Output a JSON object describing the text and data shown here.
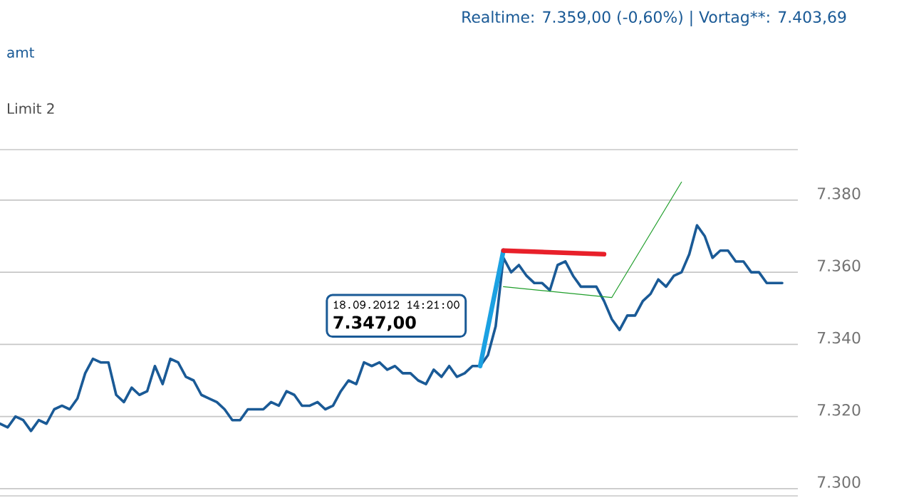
{
  "chart_data": {
    "type": "line",
    "title": "Realtime: 7.359,00 (-0,60%) | Vortag**: 7.403,69",
    "annotations": [
      "amt",
      "Limit 2",
      "18.09.2012 14:21:00",
      "7.347,00"
    ],
    "categories": [
      null,
      null,
      null,
      null,
      null,
      null,
      null,
      null,
      null,
      null,
      null,
      null,
      null,
      null,
      null,
      null,
      null,
      null,
      null,
      null,
      null,
      null,
      null,
      null,
      null,
      null,
      null,
      null,
      null,
      null,
      null,
      null,
      null,
      null,
      null,
      null,
      null,
      null,
      null,
      null,
      null,
      null,
      null,
      null,
      null,
      null,
      null,
      null,
      null,
      null,
      null,
      null,
      null,
      null,
      null,
      null,
      null,
      null,
      null,
      null,
      null,
      null,
      null,
      null,
      null,
      null,
      null,
      null,
      null,
      null,
      null,
      null,
      null,
      null,
      null,
      null,
      null,
      null,
      null,
      null,
      null,
      null,
      null,
      null,
      null,
      null,
      null,
      null,
      null,
      null,
      null,
      null,
      null,
      null,
      null,
      null,
      null,
      null,
      null,
      null,
      null,
      null
    ],
    "series": [
      {
        "color": "#1a5a96",
        "values": [
          7318,
          7317,
          7320,
          7319,
          7316,
          7319,
          7318,
          7322,
          7323,
          7322,
          7325,
          7332,
          7336,
          7335,
          7335,
          7326,
          7324,
          7328,
          7326,
          7327,
          7334,
          7329,
          7336,
          7335,
          7331,
          7330,
          7326,
          7325,
          7324,
          7322,
          7319,
          7319,
          7322,
          7322,
          7322,
          7324,
          7323,
          7327,
          7326,
          7323,
          7323,
          7324,
          7322,
          7323,
          7327,
          7330,
          7329,
          7335,
          7334,
          7335,
          7333,
          7334,
          7332,
          7332,
          7330,
          7329,
          7333,
          7331,
          7334,
          7331,
          7332,
          7334,
          7334,
          7337,
          7345,
          7364,
          7360,
          7362,
          7359,
          7357,
          7357,
          7355,
          7362,
          7363,
          7359,
          7356,
          7356,
          7356,
          7352,
          7347,
          7344,
          7348,
          7348,
          7352,
          7354,
          7358,
          7356,
          7359,
          7360,
          7365,
          7373,
          7370,
          7364,
          7366,
          7366,
          7363,
          7363,
          7360,
          7360,
          7357,
          7357,
          7357
        ]
      },
      {
        "color": "#1ba1e2",
        "values": [
          null,
          null,
          null,
          null,
          null,
          null,
          null,
          null,
          null,
          null,
          null,
          null,
          null,
          null,
          null,
          null,
          null,
          null,
          null,
          null,
          null,
          null,
          null,
          null,
          null,
          null,
          null,
          null,
          null,
          null,
          null,
          null,
          null,
          null,
          null,
          null,
          null,
          null,
          null,
          null,
          null,
          null,
          null,
          null,
          null,
          null,
          null,
          null,
          null,
          null,
          null,
          null,
          null,
          null,
          null,
          null,
          null,
          null,
          null,
          null,
          null,
          null,
          7334,
          null,
          null,
          7366,
          null,
          null,
          null,
          null,
          null,
          null,
          null,
          null,
          null,
          null,
          null,
          null,
          null,
          null,
          null,
          null,
          null,
          null,
          null,
          null,
          null,
          null,
          null,
          null,
          null,
          null,
          null,
          null,
          null,
          null,
          null,
          null,
          null,
          null,
          null,
          null
        ]
      },
      {
        "color": "#e8202a",
        "values": [
          null,
          null,
          null,
          null,
          null,
          null,
          null,
          null,
          null,
          null,
          null,
          null,
          null,
          null,
          null,
          null,
          null,
          null,
          null,
          null,
          null,
          null,
          null,
          null,
          null,
          null,
          null,
          null,
          null,
          null,
          null,
          null,
          null,
          null,
          null,
          null,
          null,
          null,
          null,
          null,
          null,
          null,
          null,
          null,
          null,
          null,
          null,
          null,
          null,
          null,
          null,
          null,
          null,
          null,
          null,
          null,
          null,
          null,
          null,
          null,
          null,
          null,
          null,
          null,
          null,
          7366,
          null,
          null,
          null,
          null,
          null,
          null,
          null,
          null,
          null,
          null,
          null,
          null,
          7365,
          null,
          null,
          null,
          null,
          null,
          null,
          null,
          null,
          null,
          null,
          null,
          null,
          null,
          null,
          null,
          null,
          null,
          null,
          null,
          null,
          null,
          null,
          null
        ]
      },
      {
        "color": "#1f9e2a",
        "values": [
          null,
          null,
          null,
          null,
          null,
          null,
          null,
          null,
          null,
          null,
          null,
          null,
          null,
          null,
          null,
          null,
          null,
          null,
          null,
          null,
          null,
          null,
          null,
          null,
          null,
          null,
          null,
          null,
          null,
          null,
          null,
          null,
          null,
          null,
          null,
          null,
          null,
          null,
          null,
          null,
          null,
          null,
          null,
          null,
          null,
          null,
          null,
          null,
          null,
          null,
          null,
          null,
          null,
          null,
          null,
          null,
          null,
          null,
          null,
          null,
          null,
          null,
          null,
          null,
          null,
          7356,
          null,
          null,
          null,
          null,
          null,
          null,
          null,
          null,
          null,
          null,
          null,
          null,
          null,
          7353,
          null,
          null,
          null,
          null,
          null,
          null,
          null,
          null,
          7385,
          null,
          null,
          null,
          null,
          null,
          null,
          null,
          null,
          null,
          null,
          null,
          null,
          null
        ]
      }
    ],
    "ylim": [
      7298,
      7394
    ],
    "yticks": [
      {
        "value": 7300,
        "label": "7.300"
      },
      {
        "value": 7320,
        "label": "7.320"
      },
      {
        "value": 7340,
        "label": "7.340"
      },
      {
        "value": 7360,
        "label": "7.360"
      },
      {
        "value": 7380,
        "label": "7.380"
      }
    ],
    "grid": "y",
    "tick_labels": "y",
    "marker": "none",
    "line_style": "solid"
  }
}
